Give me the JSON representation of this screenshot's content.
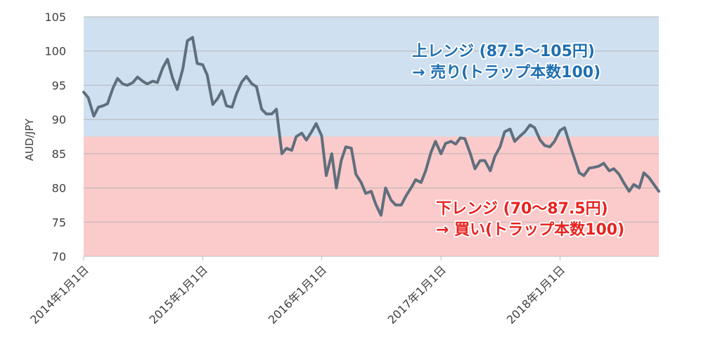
{
  "chart_data": {
    "type": "line",
    "ylabel": "AUD/JPY",
    "ylim": [
      70,
      105
    ],
    "yticks": [
      70,
      75,
      80,
      85,
      90,
      95,
      100,
      105
    ],
    "xlim": [
      "2014-01-01",
      "2018-10-31"
    ],
    "xtick_labels": [
      "2014年1月1日",
      "2015年1月1日",
      "2016年1月1日",
      "2017年1月1日",
      "2018年1月1日"
    ],
    "xtick_dates": [
      "2014-01-01",
      "2015-01-01",
      "2016-01-01",
      "2017-01-01",
      "2018-01-01"
    ],
    "grid": "horizontal",
    "bands": [
      {
        "from": 87.5,
        "to": 105,
        "color": "#cfe0f1"
      },
      {
        "from": 70,
        "to": 87.5,
        "color": "#fbcaca"
      }
    ],
    "annotations": [
      {
        "lines": [
          "上レンジ (87.5～105円)",
          "→ 売り(トラップ本数100)"
        ],
        "color": "#1f6fb0",
        "position": "upper-right"
      },
      {
        "lines": [
          "下レンジ (70～87.5円)",
          "→ 買い(トラップ本数100)"
        ],
        "color": "#e8231f",
        "position": "lower-right"
      }
    ],
    "series": [
      {
        "color": "#5f6f7d",
        "points": [
          [
            "2014-01-01",
            94.0
          ],
          [
            "2014-01-15",
            93.2
          ],
          [
            "2014-02-01",
            90.5
          ],
          [
            "2014-02-15",
            91.8
          ],
          [
            "2014-03-01",
            92.0
          ],
          [
            "2014-03-15",
            92.3
          ],
          [
            "2014-04-01",
            94.6
          ],
          [
            "2014-04-15",
            96.0
          ],
          [
            "2014-05-01",
            95.2
          ],
          [
            "2014-05-15",
            95.0
          ],
          [
            "2014-06-01",
            95.4
          ],
          [
            "2014-06-15",
            96.2
          ],
          [
            "2014-07-01",
            95.6
          ],
          [
            "2014-07-15",
            95.2
          ],
          [
            "2014-08-01",
            95.6
          ],
          [
            "2014-08-15",
            95.4
          ],
          [
            "2014-09-01",
            97.6
          ],
          [
            "2014-09-15",
            98.8
          ],
          [
            "2014-10-01",
            96.0
          ],
          [
            "2014-10-15",
            94.4
          ],
          [
            "2014-11-01",
            97.4
          ],
          [
            "2014-11-15",
            101.5
          ],
          [
            "2014-12-01",
            102.0
          ],
          [
            "2014-12-15",
            98.2
          ],
          [
            "2015-01-01",
            98.0
          ],
          [
            "2015-01-15",
            96.5
          ],
          [
            "2015-02-01",
            92.2
          ],
          [
            "2015-02-15",
            93.0
          ],
          [
            "2015-03-01",
            94.2
          ],
          [
            "2015-03-15",
            92.0
          ],
          [
            "2015-04-01",
            91.8
          ],
          [
            "2015-04-15",
            93.8
          ],
          [
            "2015-05-01",
            95.5
          ],
          [
            "2015-05-15",
            96.3
          ],
          [
            "2015-06-01",
            95.2
          ],
          [
            "2015-06-15",
            94.8
          ],
          [
            "2015-07-01",
            91.5
          ],
          [
            "2015-07-15",
            90.8
          ],
          [
            "2015-08-01",
            90.8
          ],
          [
            "2015-08-15",
            91.5
          ],
          [
            "2015-09-01",
            85.0
          ],
          [
            "2015-09-15",
            85.8
          ],
          [
            "2015-10-01",
            85.5
          ],
          [
            "2015-10-15",
            87.5
          ],
          [
            "2015-11-01",
            88.0
          ],
          [
            "2015-11-15",
            87.0
          ],
          [
            "2015-12-01",
            88.2
          ],
          [
            "2015-12-15",
            89.4
          ],
          [
            "2016-01-01",
            87.6
          ],
          [
            "2016-01-15",
            81.8
          ],
          [
            "2016-02-01",
            85.0
          ],
          [
            "2016-02-15",
            80.0
          ],
          [
            "2016-03-01",
            84.0
          ],
          [
            "2016-03-15",
            86.0
          ],
          [
            "2016-04-01",
            85.8
          ],
          [
            "2016-04-15",
            82.0
          ],
          [
            "2016-05-01",
            80.8
          ],
          [
            "2016-05-15",
            79.2
          ],
          [
            "2016-06-01",
            79.5
          ],
          [
            "2016-06-15",
            77.6
          ],
          [
            "2016-07-01",
            76.0
          ],
          [
            "2016-07-15",
            80.0
          ],
          [
            "2016-08-01",
            78.2
          ],
          [
            "2016-08-15",
            77.5
          ],
          [
            "2016-09-01",
            77.5
          ],
          [
            "2016-09-15",
            78.8
          ],
          [
            "2016-10-01",
            80.0
          ],
          [
            "2016-10-15",
            81.2
          ],
          [
            "2016-11-01",
            80.8
          ],
          [
            "2016-11-15",
            82.5
          ],
          [
            "2016-12-01",
            85.2
          ],
          [
            "2016-12-15",
            86.8
          ],
          [
            "2017-01-01",
            85.0
          ],
          [
            "2017-01-15",
            86.5
          ],
          [
            "2017-02-01",
            86.8
          ],
          [
            "2017-02-15",
            86.4
          ],
          [
            "2017-03-01",
            87.3
          ],
          [
            "2017-03-15",
            87.2
          ],
          [
            "2017-04-01",
            85.0
          ],
          [
            "2017-04-15",
            82.8
          ],
          [
            "2017-05-01",
            84.0
          ],
          [
            "2017-05-15",
            84.0
          ],
          [
            "2017-06-01",
            82.5
          ],
          [
            "2017-06-15",
            84.6
          ],
          [
            "2017-07-01",
            86.0
          ],
          [
            "2017-07-15",
            88.2
          ],
          [
            "2017-08-01",
            88.6
          ],
          [
            "2017-08-15",
            86.8
          ],
          [
            "2017-09-01",
            87.6
          ],
          [
            "2017-09-15",
            88.2
          ],
          [
            "2017-10-01",
            89.2
          ],
          [
            "2017-10-15",
            88.8
          ],
          [
            "2017-11-01",
            87.0
          ],
          [
            "2017-11-15",
            86.2
          ],
          [
            "2017-12-01",
            86.0
          ],
          [
            "2017-12-15",
            86.8
          ],
          [
            "2018-01-01",
            88.4
          ],
          [
            "2018-01-15",
            88.8
          ],
          [
            "2018-02-01",
            86.2
          ],
          [
            "2018-02-15",
            84.2
          ],
          [
            "2018-03-01",
            82.2
          ],
          [
            "2018-03-15",
            81.8
          ],
          [
            "2018-04-01",
            82.9
          ],
          [
            "2018-04-15",
            83.0
          ],
          [
            "2018-05-01",
            83.2
          ],
          [
            "2018-05-15",
            83.6
          ],
          [
            "2018-06-01",
            82.5
          ],
          [
            "2018-06-15",
            82.8
          ],
          [
            "2018-07-01",
            82.0
          ],
          [
            "2018-07-15",
            80.8
          ],
          [
            "2018-08-01",
            79.5
          ],
          [
            "2018-08-15",
            80.5
          ],
          [
            "2018-09-01",
            80.0
          ],
          [
            "2018-09-15",
            82.2
          ],
          [
            "2018-10-01",
            81.5
          ],
          [
            "2018-10-31",
            79.5
          ]
        ]
      }
    ]
  }
}
